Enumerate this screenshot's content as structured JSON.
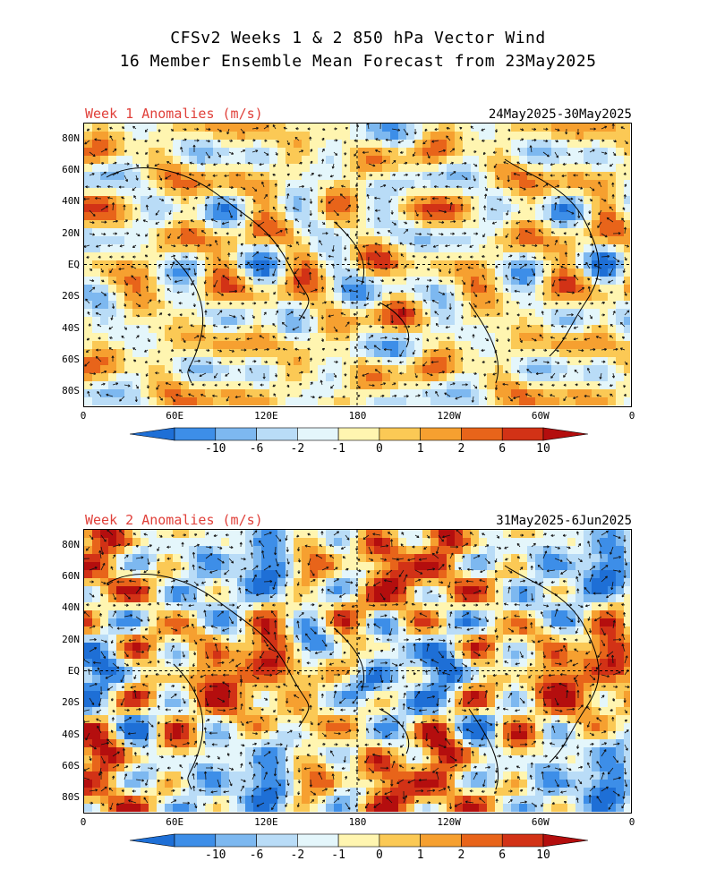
{
  "title": {
    "line1": "CFSv2 Weeks 1 & 2 850 hPa Vector Wind",
    "line2": "16 Member Ensemble Mean Forecast from 23May2025"
  },
  "colors": {
    "label_red": "#e0403a",
    "scale": [
      "#1e6fd6",
      "#3d8ee8",
      "#7db8f0",
      "#b9dcf7",
      "#e4f6fb",
      "#fff5b0",
      "#fbc955",
      "#f6a030",
      "#e8641a",
      "#d23216",
      "#b40e0e"
    ]
  },
  "legend": {
    "labels": [
      "-10",
      "-6",
      "-2",
      "-1",
      "0",
      "1",
      "2",
      "6",
      "10"
    ]
  },
  "axes": {
    "lon_labels": [
      "0",
      "60E",
      "120E",
      "180",
      "120W",
      "60W",
      "0"
    ],
    "lat_labels": [
      "80N",
      "60N",
      "40N",
      "20N",
      "EQ",
      "20S",
      "40S",
      "60S",
      "80S"
    ]
  },
  "panels": [
    {
      "id": "week1",
      "label": "Week 1 Anomalies (m/s)",
      "dates": "24May2025-30May2025",
      "seed": 17
    },
    {
      "id": "week2",
      "label": "Week 2 Anomalies (m/s)",
      "dates": "31May2025-6Jun2025",
      "seed": 53
    }
  ]
}
